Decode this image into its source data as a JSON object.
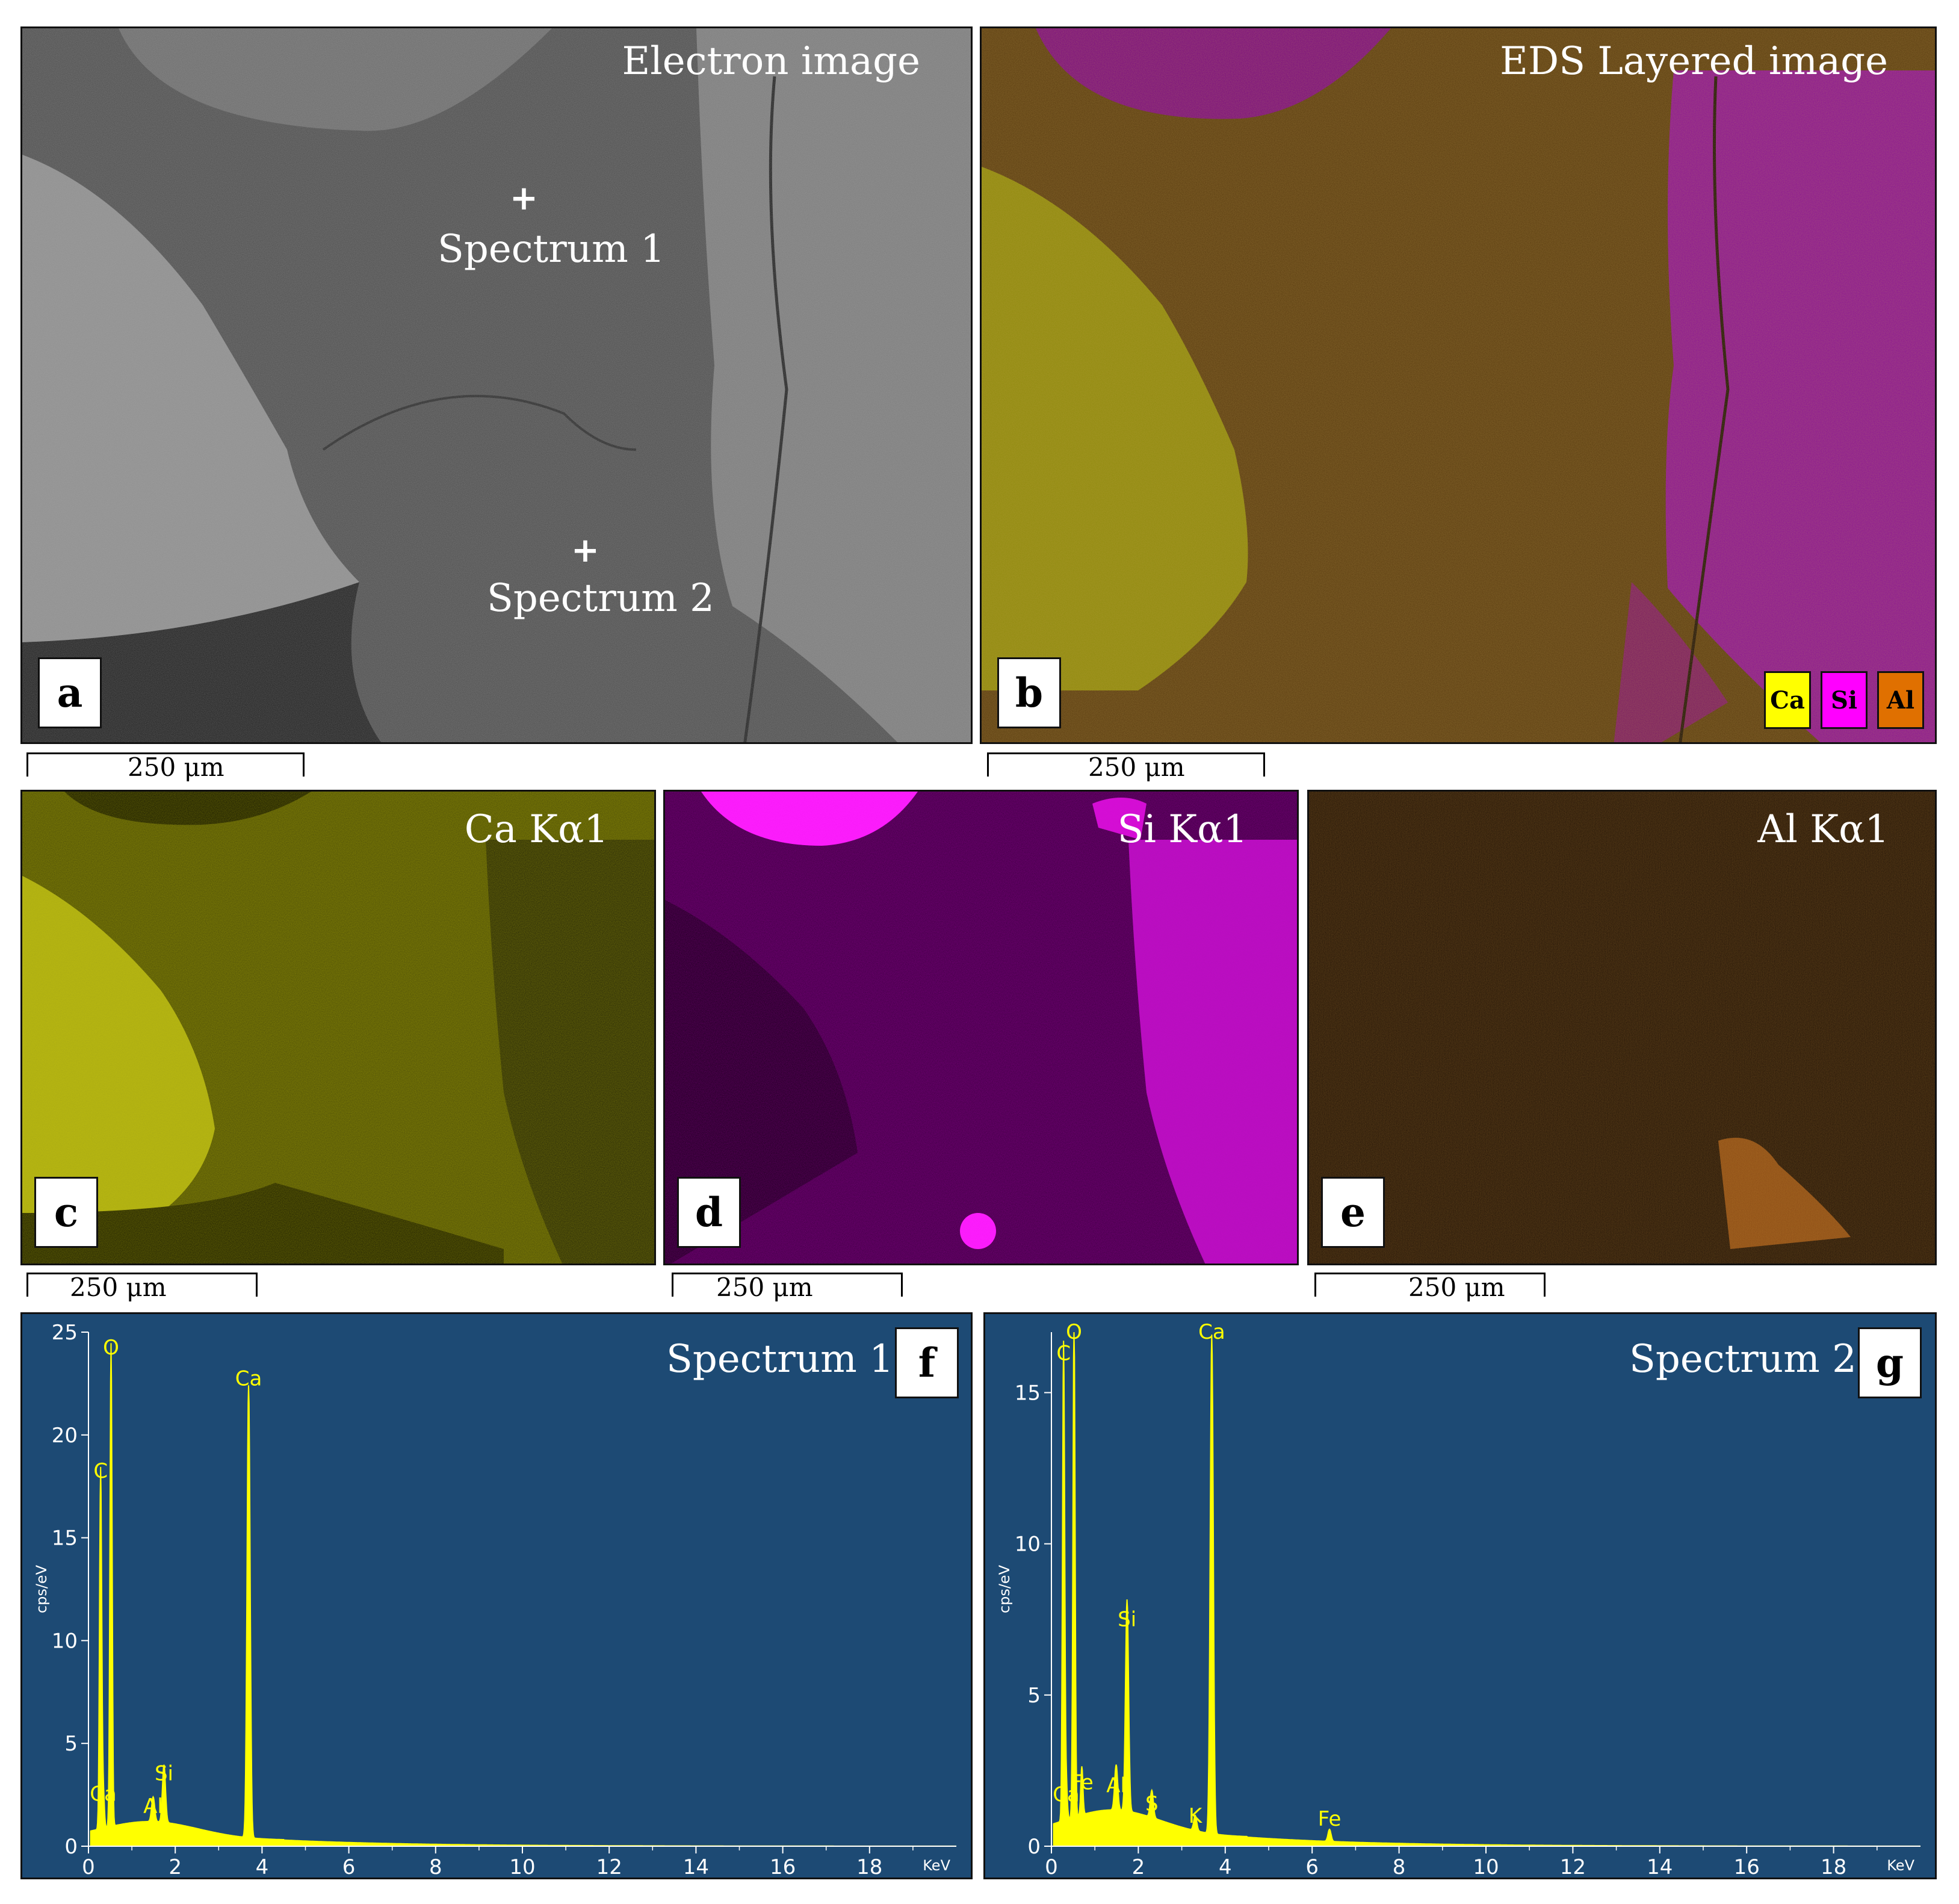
{
  "panels": {
    "a": {
      "letter": "a",
      "title": "Electron image",
      "spectrum1": "Spectrum 1",
      "spectrum2": "Spectrum 2",
      "marker": "+"
    },
    "b": {
      "letter": "b",
      "title": "EDS Layered image",
      "legend": [
        {
          "label": "Ca",
          "color": "#ffff00"
        },
        {
          "label": "Si",
          "color": "#ff00ff"
        },
        {
          "label": "Al",
          "color": "#e07000"
        }
      ]
    },
    "c": {
      "letter": "c",
      "title": "Ca Kα1"
    },
    "d": {
      "letter": "d",
      "title": "Si Kα1"
    },
    "e": {
      "letter": "e",
      "title": "Al Kα1"
    },
    "f": {
      "letter": "f",
      "title": "Spectrum 1"
    },
    "g": {
      "letter": "g",
      "title": "Spectrum 2"
    }
  },
  "scale_bar": "250 μm",
  "colors": {
    "ca": "#b8b800",
    "si": "#c000c0",
    "al": "#a05010",
    "spectrum_bg": "#1d4a74",
    "peak": "#ffff00"
  },
  "chart_data": [
    {
      "type": "line",
      "title": "Spectrum 1",
      "xlabel": "KeV",
      "ylabel": "cps/eV",
      "xlim": [
        0,
        20
      ],
      "ylim": [
        0,
        25
      ],
      "x_ticks": [
        "0",
        "2",
        "4",
        "6",
        "8",
        "10",
        "12",
        "14",
        "16",
        "18"
      ],
      "y_ticks": [
        "0",
        "5",
        "10",
        "15",
        "20",
        "25"
      ],
      "peaks": [
        {
          "label": "C",
          "x": 0.28,
          "y": 17.5
        },
        {
          "label": "O",
          "x": 0.52,
          "y": 23.5
        },
        {
          "label": "Ca",
          "x": 0.34,
          "y": 1.8
        },
        {
          "label": "Al",
          "x": 1.49,
          "y": 1.2
        },
        {
          "label": "Si",
          "x": 1.74,
          "y": 2.8
        },
        {
          "label": "Ca",
          "x": 3.69,
          "y": 22.0
        }
      ]
    },
    {
      "type": "line",
      "title": "Spectrum 2",
      "xlabel": "KeV",
      "ylabel": "cps/eV",
      "xlim": [
        0,
        20
      ],
      "ylim": [
        0,
        17
      ],
      "x_ticks": [
        "0",
        "2",
        "4",
        "6",
        "8",
        "10",
        "12",
        "14",
        "16",
        "18"
      ],
      "y_ticks": [
        "0",
        "5",
        "10",
        "15"
      ],
      "peaks": [
        {
          "label": "C",
          "x": 0.28,
          "y": 15.8
        },
        {
          "label": "O",
          "x": 0.52,
          "y": 16.5
        },
        {
          "label": "Ca",
          "x": 0.34,
          "y": 1.2
        },
        {
          "label": "Fe",
          "x": 0.7,
          "y": 1.6
        },
        {
          "label": "Al",
          "x": 1.49,
          "y": 1.5
        },
        {
          "label": "Si",
          "x": 1.74,
          "y": 7.0
        },
        {
          "label": "S",
          "x": 2.31,
          "y": 0.9
        },
        {
          "label": "K",
          "x": 3.31,
          "y": 0.5
        },
        {
          "label": "Ca",
          "x": 3.69,
          "y": 16.5
        },
        {
          "label": "Fe",
          "x": 6.4,
          "y": 0.4
        }
      ]
    }
  ]
}
